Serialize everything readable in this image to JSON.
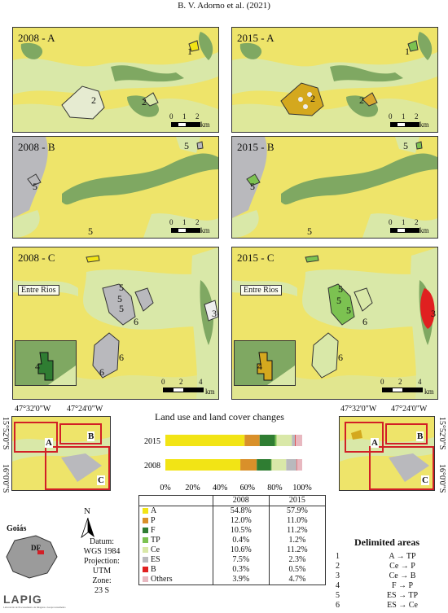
{
  "header": "B. V. Adorno et al. (2021)",
  "panels": [
    {
      "title": "2008 - A",
      "labels": [
        "1",
        "2",
        "2"
      ]
    },
    {
      "title": "2015 - A",
      "labels": [
        "1",
        "2",
        "2"
      ]
    },
    {
      "title": "2008 - B",
      "labels": [
        "5",
        "5",
        "5"
      ]
    },
    {
      "title": "2015 - B",
      "labels": [
        "5",
        "5",
        "5"
      ]
    },
    {
      "title": "2008 - C",
      "labels": [
        "5",
        "5",
        "5",
        "6",
        "6",
        "6",
        "3",
        "4"
      ],
      "place": "Entre Rios"
    },
    {
      "title": "2015 - C",
      "labels": [
        "5",
        "5",
        "5",
        "6",
        "6",
        "3",
        "4"
      ],
      "place": "Entre Rios"
    }
  ],
  "scale_ab": {
    "ticks": [
      "0",
      "1",
      "2"
    ],
    "unit": "km"
  },
  "scale_c": {
    "ticks": [
      "0",
      "2",
      "4"
    ],
    "unit": "km"
  },
  "locator": {
    "coords_top": [
      "47°32'0\"W",
      "47°24'0\"W"
    ],
    "coords_side": [
      "15°52'0\"S",
      "16°0'0\"S"
    ],
    "regions": [
      "A",
      "B",
      "C"
    ]
  },
  "chart_data": {
    "type": "bar",
    "orientation": "horizontal-stacked",
    "title": "Land use and  land cover changes",
    "categories": [
      "2015",
      "2008"
    ],
    "xticks": [
      "0%",
      "20%",
      "40%",
      "60%",
      "80%",
      "100%"
    ],
    "xlim": [
      0,
      100
    ],
    "series": [
      {
        "name": "A",
        "color": "#f2e415",
        "values": [
          57.9,
          54.8
        ]
      },
      {
        "name": "P",
        "color": "#d9902a",
        "values": [
          11.0,
          12.0
        ]
      },
      {
        "name": "F",
        "color": "#2f7d32",
        "values": [
          11.2,
          10.5
        ]
      },
      {
        "name": "TP",
        "color": "#7cc251",
        "values": [
          1.2,
          0.4
        ]
      },
      {
        "name": "Ce",
        "color": "#d9e8a8",
        "values": [
          11.2,
          10.6
        ]
      },
      {
        "name": "ES",
        "color": "#b9b9bd",
        "values": [
          2.3,
          7.5
        ]
      },
      {
        "name": "B",
        "color": "#e02020",
        "values": [
          0.5,
          0.3
        ]
      },
      {
        "name": "Others",
        "color": "#e8b8c0",
        "values": [
          4.7,
          3.9
        ]
      }
    ]
  },
  "table": {
    "headers": [
      "2008",
      "2015"
    ],
    "rows": [
      {
        "cls": "A",
        "color": "#f2e415",
        "v2008": "54.8%",
        "v2015": "57.9%"
      },
      {
        "cls": "P",
        "color": "#d9902a",
        "v2008": "12.0%",
        "v2015": "11.0%"
      },
      {
        "cls": "F",
        "color": "#2f7d32",
        "v2008": "10.5%",
        "v2015": "11.2%"
      },
      {
        "cls": "TP",
        "color": "#7cc251",
        "v2008": "0.4%",
        "v2015": "1.2%"
      },
      {
        "cls": "Ce",
        "color": "#d9e8a8",
        "v2008": "10.6%",
        "v2015": "11.2%"
      },
      {
        "cls": "ES",
        "color": "#b9b9bd",
        "v2008": "7.5%",
        "v2015": "2.3%"
      },
      {
        "cls": "B",
        "color": "#e02020",
        "v2008": "0.3%",
        "v2015": "0.5%"
      },
      {
        "cls": "Others",
        "color": "#e8b8c0",
        "v2008": "3.9%",
        "v2015": "4.7%"
      }
    ]
  },
  "delimited": {
    "title": "Delimited areas",
    "rows": [
      {
        "n": "1",
        "v": "A → TP"
      },
      {
        "n": "2",
        "v": "Ce → P"
      },
      {
        "n": "3",
        "v": "Ce → B"
      },
      {
        "n": "4",
        "v": "F → P"
      },
      {
        "n": "5",
        "v": "ES → TP"
      },
      {
        "n": "6",
        "v": "ES → Ce"
      }
    ]
  },
  "datum": [
    "Datum:",
    "WGS 1984",
    "Projection:",
    "UTM",
    "Zone:",
    "23 S"
  ],
  "goias": {
    "name": "Goiás",
    "df": "DF"
  },
  "north": "N",
  "logo": {
    "name": "LAPIG",
    "tagline": "Laboratório de Processamento de Imagens e Geoprocessamento"
  }
}
